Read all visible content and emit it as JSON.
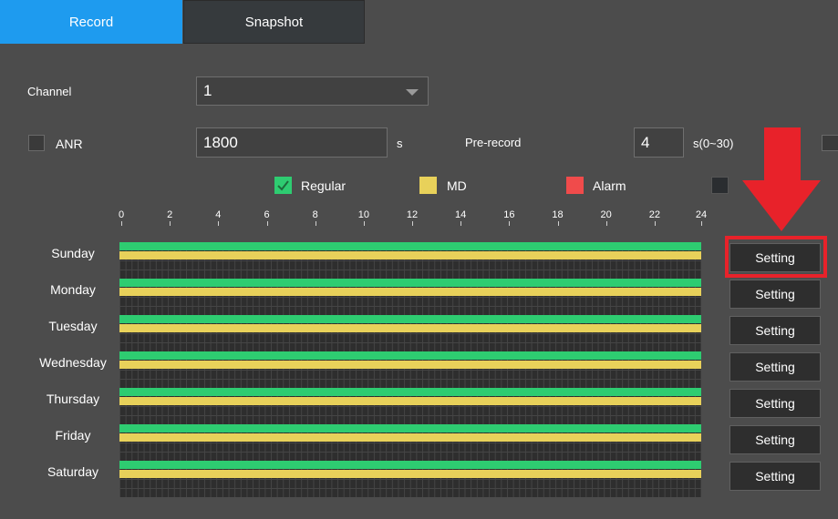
{
  "tabs": [
    {
      "label": "Record"
    },
    {
      "label": "Snapshot"
    }
  ],
  "form": {
    "channel_label": "Channel",
    "channel_value": "1",
    "anr_label": "ANR",
    "anr_value": "1800",
    "anr_unit": "s",
    "prerecord_label": "Pre-record",
    "prerecord_value": "4",
    "prerecord_unit": "s(0~30)"
  },
  "legend": [
    {
      "label": "Regular",
      "color": "#2ecc71",
      "checked": true
    },
    {
      "label": "MD",
      "color": "#e8d15a",
      "checked": false
    },
    {
      "label": "Alarm",
      "color": "#f04b4b",
      "checked": false
    },
    {
      "label": "",
      "color": "#2a2d30",
      "checked": false
    }
  ],
  "timeline": {
    "ticks": [
      "0",
      "2",
      "4",
      "6",
      "8",
      "10",
      "12",
      "14",
      "16",
      "18",
      "20",
      "22",
      "24"
    ]
  },
  "days": [
    {
      "name": "Sunday",
      "button": "Setting"
    },
    {
      "name": "Monday",
      "button": "Setting"
    },
    {
      "name": "Tuesday",
      "button": "Setting"
    },
    {
      "name": "Wednesday",
      "button": "Setting"
    },
    {
      "name": "Thursday",
      "button": "Setting"
    },
    {
      "name": "Friday",
      "button": "Setting"
    },
    {
      "name": "Saturday",
      "button": "Setting"
    }
  ],
  "colors": {
    "accent": "#1e9bef",
    "regular": "#2ecc71",
    "md": "#e8d15a",
    "highlight": "#e8222a"
  }
}
